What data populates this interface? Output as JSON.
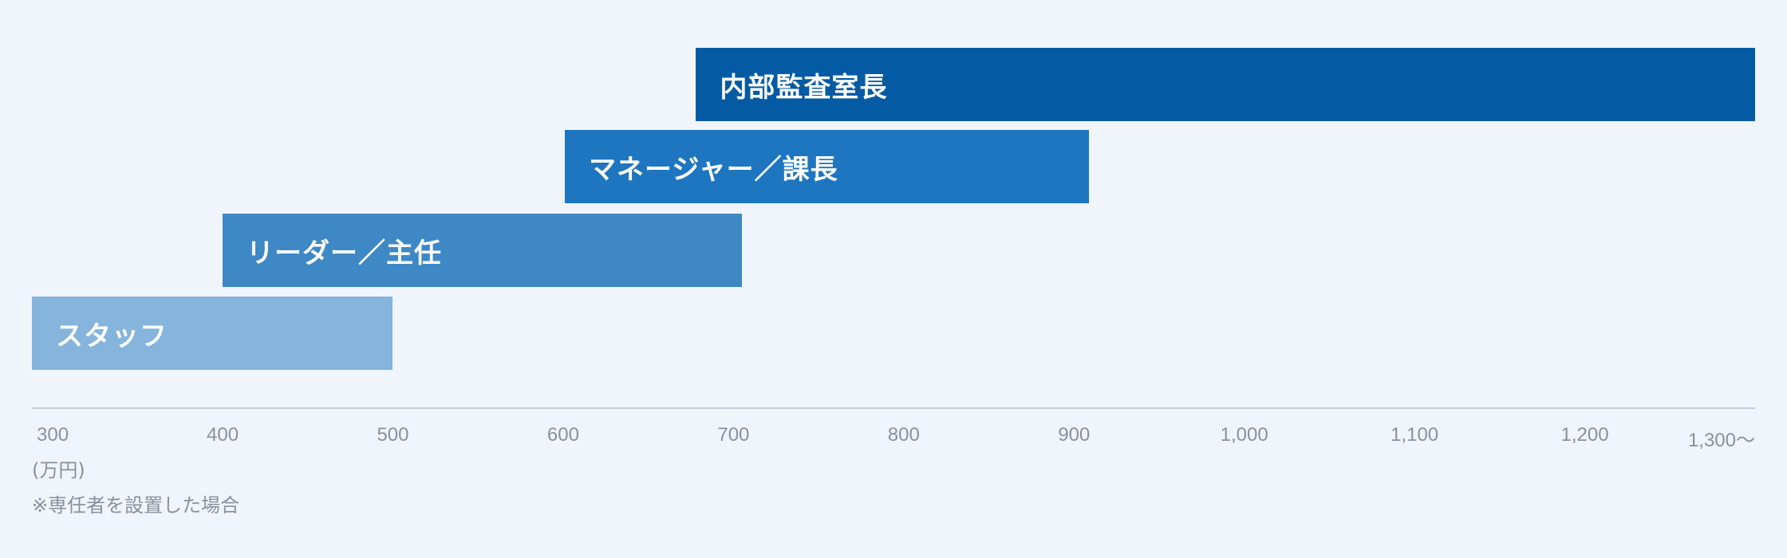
{
  "chart_data": {
    "type": "bar",
    "orientation": "horizontal-range",
    "series": [
      {
        "name": "内部監査室長",
        "start": 678,
        "end": 1300,
        "color": "#055ba3"
      },
      {
        "name": "マネージャー／課長",
        "start": 601,
        "end": 909,
        "color": "#1e76c0"
      },
      {
        "name": "リーダー／主任",
        "start": 400,
        "end": 705,
        "color": "#3e88c5"
      },
      {
        "name": "スタッフ",
        "start": 288,
        "end": 500,
        "color": "#85b4dc"
      }
    ],
    "x_ticks": [
      {
        "value": 300,
        "label": "300"
      },
      {
        "value": 400,
        "label": "400"
      },
      {
        "value": 500,
        "label": "500"
      },
      {
        "value": 600,
        "label": "600"
      },
      {
        "value": 700,
        "label": "700"
      },
      {
        "value": 800,
        "label": "800"
      },
      {
        "value": 900,
        "label": "900"
      },
      {
        "value": 1000,
        "label": "1,000"
      },
      {
        "value": 1100,
        "label": "1,100"
      },
      {
        "value": 1200,
        "label": "1,200"
      },
      {
        "value": 1300,
        "label": "1,300〜"
      }
    ],
    "xlim": [
      288,
      1300
    ],
    "unit": "(万円)",
    "note": "※専任者を設置した場合"
  }
}
